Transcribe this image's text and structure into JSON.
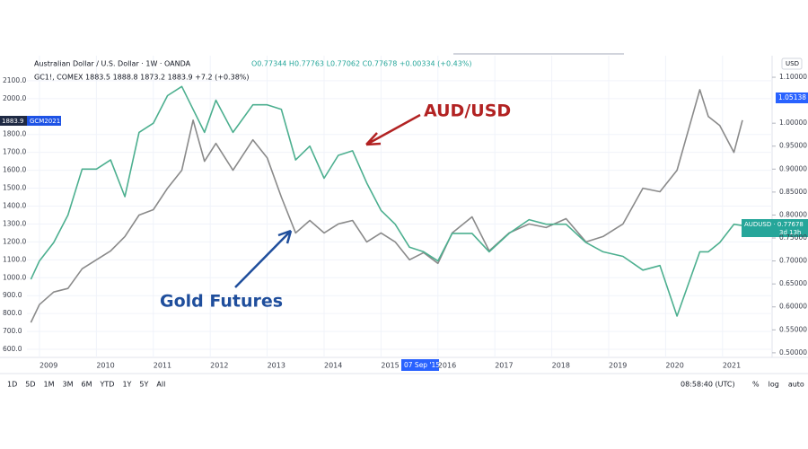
{
  "chart_data": {
    "type": "line",
    "header": {
      "symbol": "Australian Dollar / U.S. Dollar · 1W · OANDA",
      "ohlc": "O0.77344 H0.77763 L0.77062 C0.77678 +0.00334 (+0.43%)",
      "overlay": "GC1!, COMEX 1883.5 1888.8 1873.2 1883.9 +7.2 (+0.38%)"
    },
    "annotations": [
      {
        "text": "AUD/USD",
        "color": "#b22222"
      },
      {
        "text": "Gold Futures",
        "color": "#1f4e9c"
      }
    ],
    "price_tags": {
      "left_price": "1883.9",
      "left_symbol": "GCM2021",
      "right_price": "1.05138",
      "right_symbol": "AUDUSD · 0.77678",
      "right_timer": "3d 13h",
      "currency": "USD",
      "cursor_date": "07 Sep '15"
    },
    "x": [
      2008.85,
      2009,
      2009.25,
      2009.5,
      2009.75,
      2010,
      2010.25,
      2010.5,
      2010.75,
      2011,
      2011.25,
      2011.5,
      2011.7,
      2011.9,
      2012.1,
      2012.4,
      2012.75,
      2013,
      2013.25,
      2013.5,
      2013.75,
      2014,
      2014.25,
      2014.5,
      2014.75,
      2015,
      2015.25,
      2015.5,
      2015.75,
      2016,
      2016.25,
      2016.6,
      2016.9,
      2017.25,
      2017.6,
      2017.9,
      2018.25,
      2018.6,
      2018.9,
      2019.25,
      2019.6,
      2019.9,
      2020.2,
      2020.6,
      2020.75,
      2020.95,
      2021.2,
      2021.35
    ],
    "series": [
      {
        "name": "Gold Futures",
        "color": "#8a8a8a",
        "values": [
          750,
          850,
          920,
          940,
          1050,
          1100,
          1150,
          1230,
          1350,
          1380,
          1500,
          1600,
          1880,
          1650,
          1750,
          1600,
          1770,
          1670,
          1450,
          1250,
          1320,
          1250,
          1300,
          1320,
          1200,
          1250,
          1200,
          1100,
          1140,
          1080,
          1250,
          1340,
          1150,
          1250,
          1300,
          1280,
          1330,
          1200,
          1230,
          1300,
          1500,
          1480,
          1600,
          2050,
          1900,
          1850,
          1700,
          1880
        ]
      },
      {
        "name": "AUD/USD",
        "color": "#4caf8f",
        "axis": "y2",
        "values": [
          0.66,
          0.7,
          0.74,
          0.8,
          0.9,
          0.9,
          0.92,
          0.84,
          0.98,
          1.0,
          1.06,
          1.08,
          1.03,
          0.98,
          1.05,
          0.98,
          1.04,
          1.04,
          1.03,
          0.92,
          0.95,
          0.88,
          0.93,
          0.94,
          0.87,
          0.81,
          0.78,
          0.73,
          0.72,
          0.7,
          0.76,
          0.76,
          0.72,
          0.76,
          0.79,
          0.78,
          0.78,
          0.74,
          0.72,
          0.71,
          0.68,
          0.69,
          0.58,
          0.72,
          0.72,
          0.74,
          0.78,
          0.777
        ]
      }
    ],
    "xlim": [
      2008.78,
      2021.87
    ],
    "xticks": [
      2009,
      2010,
      2011,
      2012,
      2013,
      2014,
      2015,
      2016,
      2017,
      2018,
      2019,
      2020,
      2021
    ],
    "ylim": [
      555,
      2240
    ],
    "yticks": [
      {
        "value": 600,
        "label": "600.0"
      },
      {
        "value": 700,
        "label": "700.0"
      },
      {
        "value": 800,
        "label": "800.0"
      },
      {
        "value": 900,
        "label": "900.0"
      },
      {
        "value": 1000,
        "label": "1000.0"
      },
      {
        "value": 1100,
        "label": "1100.0"
      },
      {
        "value": 1200,
        "label": "1200.0"
      },
      {
        "value": 1300,
        "label": "1300.0"
      },
      {
        "value": 1400,
        "label": "1400.0"
      },
      {
        "value": 1500,
        "label": "1500.0"
      },
      {
        "value": 1600,
        "label": "1600.0"
      },
      {
        "value": 1700,
        "label": "1700.0"
      },
      {
        "value": 1800,
        "label": "1800.0"
      },
      {
        "value": 2000,
        "label": "2000.0"
      },
      {
        "value": 2100,
        "label": "2100.0"
      }
    ],
    "y2lim": [
      0.49,
      1.147
    ],
    "y2ticks": [
      {
        "value": 0.5,
        "label": "0.50000"
      },
      {
        "value": 0.55,
        "label": "0.55000"
      },
      {
        "value": 0.6,
        "label": "0.60000"
      },
      {
        "value": 0.65,
        "label": "0.65000"
      },
      {
        "value": 0.7,
        "label": "0.70000"
      },
      {
        "value": 0.75,
        "label": "0.75000"
      },
      {
        "value": 0.8,
        "label": "0.80000"
      },
      {
        "value": 0.85,
        "label": "0.85000"
      },
      {
        "value": 0.9,
        "label": "0.90000"
      },
      {
        "value": 0.95,
        "label": "0.95000"
      },
      {
        "value": 1.0,
        "label": "1.00000"
      },
      {
        "value": 1.1,
        "label": "1.10000"
      }
    ]
  },
  "toolbar": {
    "ranges": [
      "1D",
      "5D",
      "1M",
      "3M",
      "6M",
      "YTD",
      "1Y",
      "5Y",
      "All"
    ],
    "clock": "08:58:40 (UTC)",
    "options": [
      "%",
      "log",
      "auto"
    ]
  }
}
